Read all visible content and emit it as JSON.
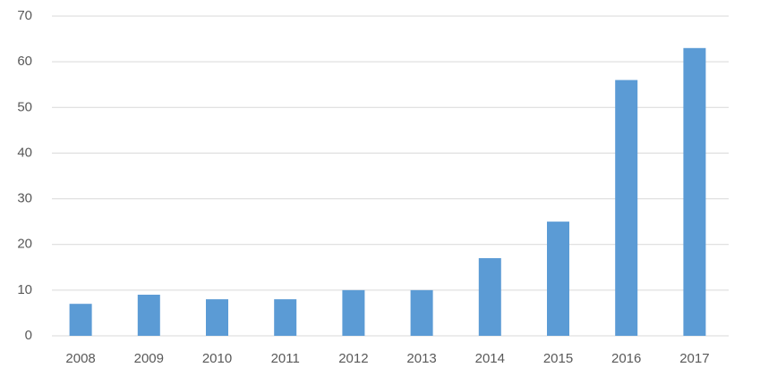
{
  "chart_data": {
    "type": "bar",
    "categories": [
      "2008",
      "2009",
      "2010",
      "2011",
      "2012",
      "2013",
      "2014",
      "2015",
      "2016",
      "2017"
    ],
    "values": [
      7,
      9,
      8,
      8,
      10,
      10,
      17,
      25,
      56,
      63
    ],
    "color": "#5b9bd5",
    "ylim": [
      0,
      70
    ],
    "yticks": [
      0,
      10,
      20,
      30,
      40,
      50,
      60,
      70
    ],
    "grid": true
  }
}
